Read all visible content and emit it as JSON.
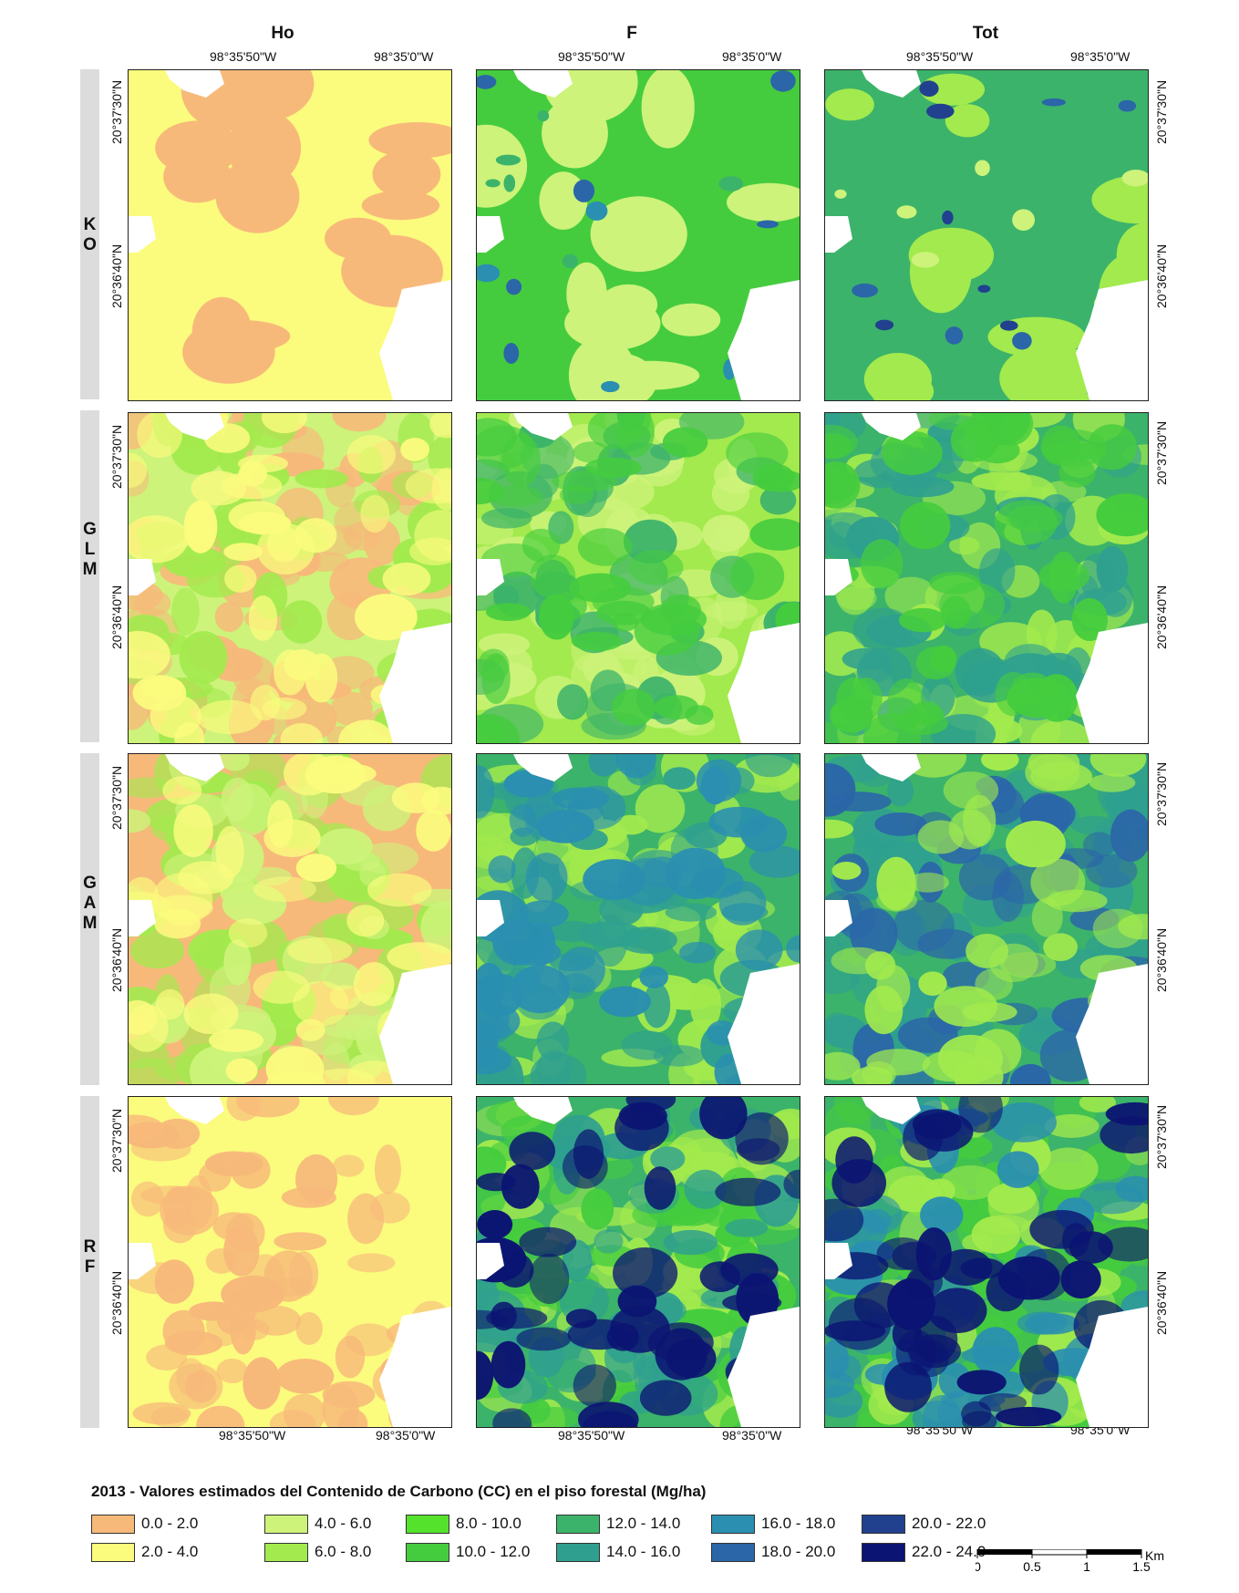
{
  "columns": [
    {
      "id": "ho",
      "title": "Ho"
    },
    {
      "id": "f",
      "title": "F"
    },
    {
      "id": "tot",
      "title": "Tot"
    }
  ],
  "rows": [
    {
      "id": "ko",
      "label": [
        "K",
        "O"
      ]
    },
    {
      "id": "glm",
      "label": [
        "G",
        "L",
        "M"
      ]
    },
    {
      "id": "gam",
      "label": [
        "G",
        "A",
        "M"
      ]
    },
    {
      "id": "rf",
      "label": [
        "R",
        "F"
      ]
    }
  ],
  "longitude_ticks": [
    "98°35'50\"W",
    "98°35'0\"W"
  ],
  "latitude_ticks": [
    "20°37'30\"N",
    "20°36'40\"N"
  ],
  "legend": {
    "title": "2013 - Valores estimados del Contenido de Carbono (CC) en el piso forestal (Mg/ha)",
    "classes": [
      {
        "label": "0.0 - 2.0",
        "color": "#f7b97a"
      },
      {
        "label": "2.0 - 4.0",
        "color": "#fbfb7e"
      },
      {
        "label": "4.0 - 6.0",
        "color": "#cdf37a"
      },
      {
        "label": "6.0 - 8.0",
        "color": "#a2ea4d"
      },
      {
        "label": "8.0 - 10.0",
        "color": "#55e22c"
      },
      {
        "label": "10.0 - 12.0",
        "color": "#45cc3e"
      },
      {
        "label": "12.0 - 14.0",
        "color": "#3cb36a"
      },
      {
        "label": "14.0 - 16.0",
        "color": "#2fa08f"
      },
      {
        "label": "16.0 - 18.0",
        "color": "#2a8fb0"
      },
      {
        "label": "18.0 - 20.0",
        "color": "#2b66a8"
      },
      {
        "label": "20.0 - 22.0",
        "color": "#21418e"
      },
      {
        "label": "22.0 - 24.0",
        "color": "#0b1472"
      }
    ]
  },
  "scale_bar": {
    "unit": "Km",
    "ticks": [
      "0",
      "0.5",
      "1",
      "1.5"
    ]
  },
  "maps": {
    "ko_ho": {
      "base_class": "2.0 - 4.0",
      "patch_classes": [
        "0.0 - 2.0"
      ]
    },
    "ko_f": {
      "base_class": "10.0 - 12.0",
      "patch_classes": [
        "4.0 - 6.0",
        "12.0 - 14.0",
        "16.0 - 18.0",
        "18.0 - 20.0"
      ]
    },
    "ko_tot": {
      "base_class": "12.0 - 14.0",
      "patch_classes": [
        "6.0 - 8.0",
        "4.0 - 6.0",
        "18.0 - 20.0",
        "20.0 - 22.0"
      ]
    },
    "glm_ho": {
      "base_class": "4.0 - 6.0",
      "patch_classes": [
        "0.0 - 2.0",
        "6.0 - 8.0",
        "2.0 - 4.0"
      ]
    },
    "glm_f": {
      "base_class": "6.0 - 8.0",
      "patch_classes": [
        "4.0 - 6.0",
        "12.0 - 14.0",
        "10.0 - 12.0"
      ]
    },
    "glm_tot": {
      "base_class": "12.0 - 14.0",
      "patch_classes": [
        "6.0 - 8.0",
        "14.0 - 16.0",
        "10.0 - 12.0"
      ]
    },
    "gam_ho": {
      "base_class": "0.0 - 2.0",
      "patch_classes": [
        "6.0 - 8.0",
        "4.0 - 6.0",
        "2.0 - 4.0"
      ]
    },
    "gam_f": {
      "base_class": "12.0 - 14.0",
      "patch_classes": [
        "6.0 - 8.0",
        "14.0 - 16.0",
        "16.0 - 18.0"
      ]
    },
    "gam_tot": {
      "base_class": "12.0 - 14.0",
      "patch_classes": [
        "14.0 - 16.0",
        "18.0 - 20.0",
        "6.0 - 8.0"
      ]
    },
    "rf_ho": {
      "base_class": "2.0 - 4.0",
      "patch_classes": [
        "0.0 - 2.0"
      ]
    },
    "rf_f": {
      "base_class": "12.0 - 14.0",
      "patch_classes": [
        "6.0 - 8.0",
        "10.0 - 12.0",
        "14.0 - 16.0",
        "22.0 - 24.0"
      ]
    },
    "rf_tot": {
      "base_class": "12.0 - 14.0",
      "patch_classes": [
        "10.0 - 12.0",
        "6.0 - 8.0",
        "16.0 - 18.0",
        "22.0 - 24.0"
      ]
    }
  }
}
